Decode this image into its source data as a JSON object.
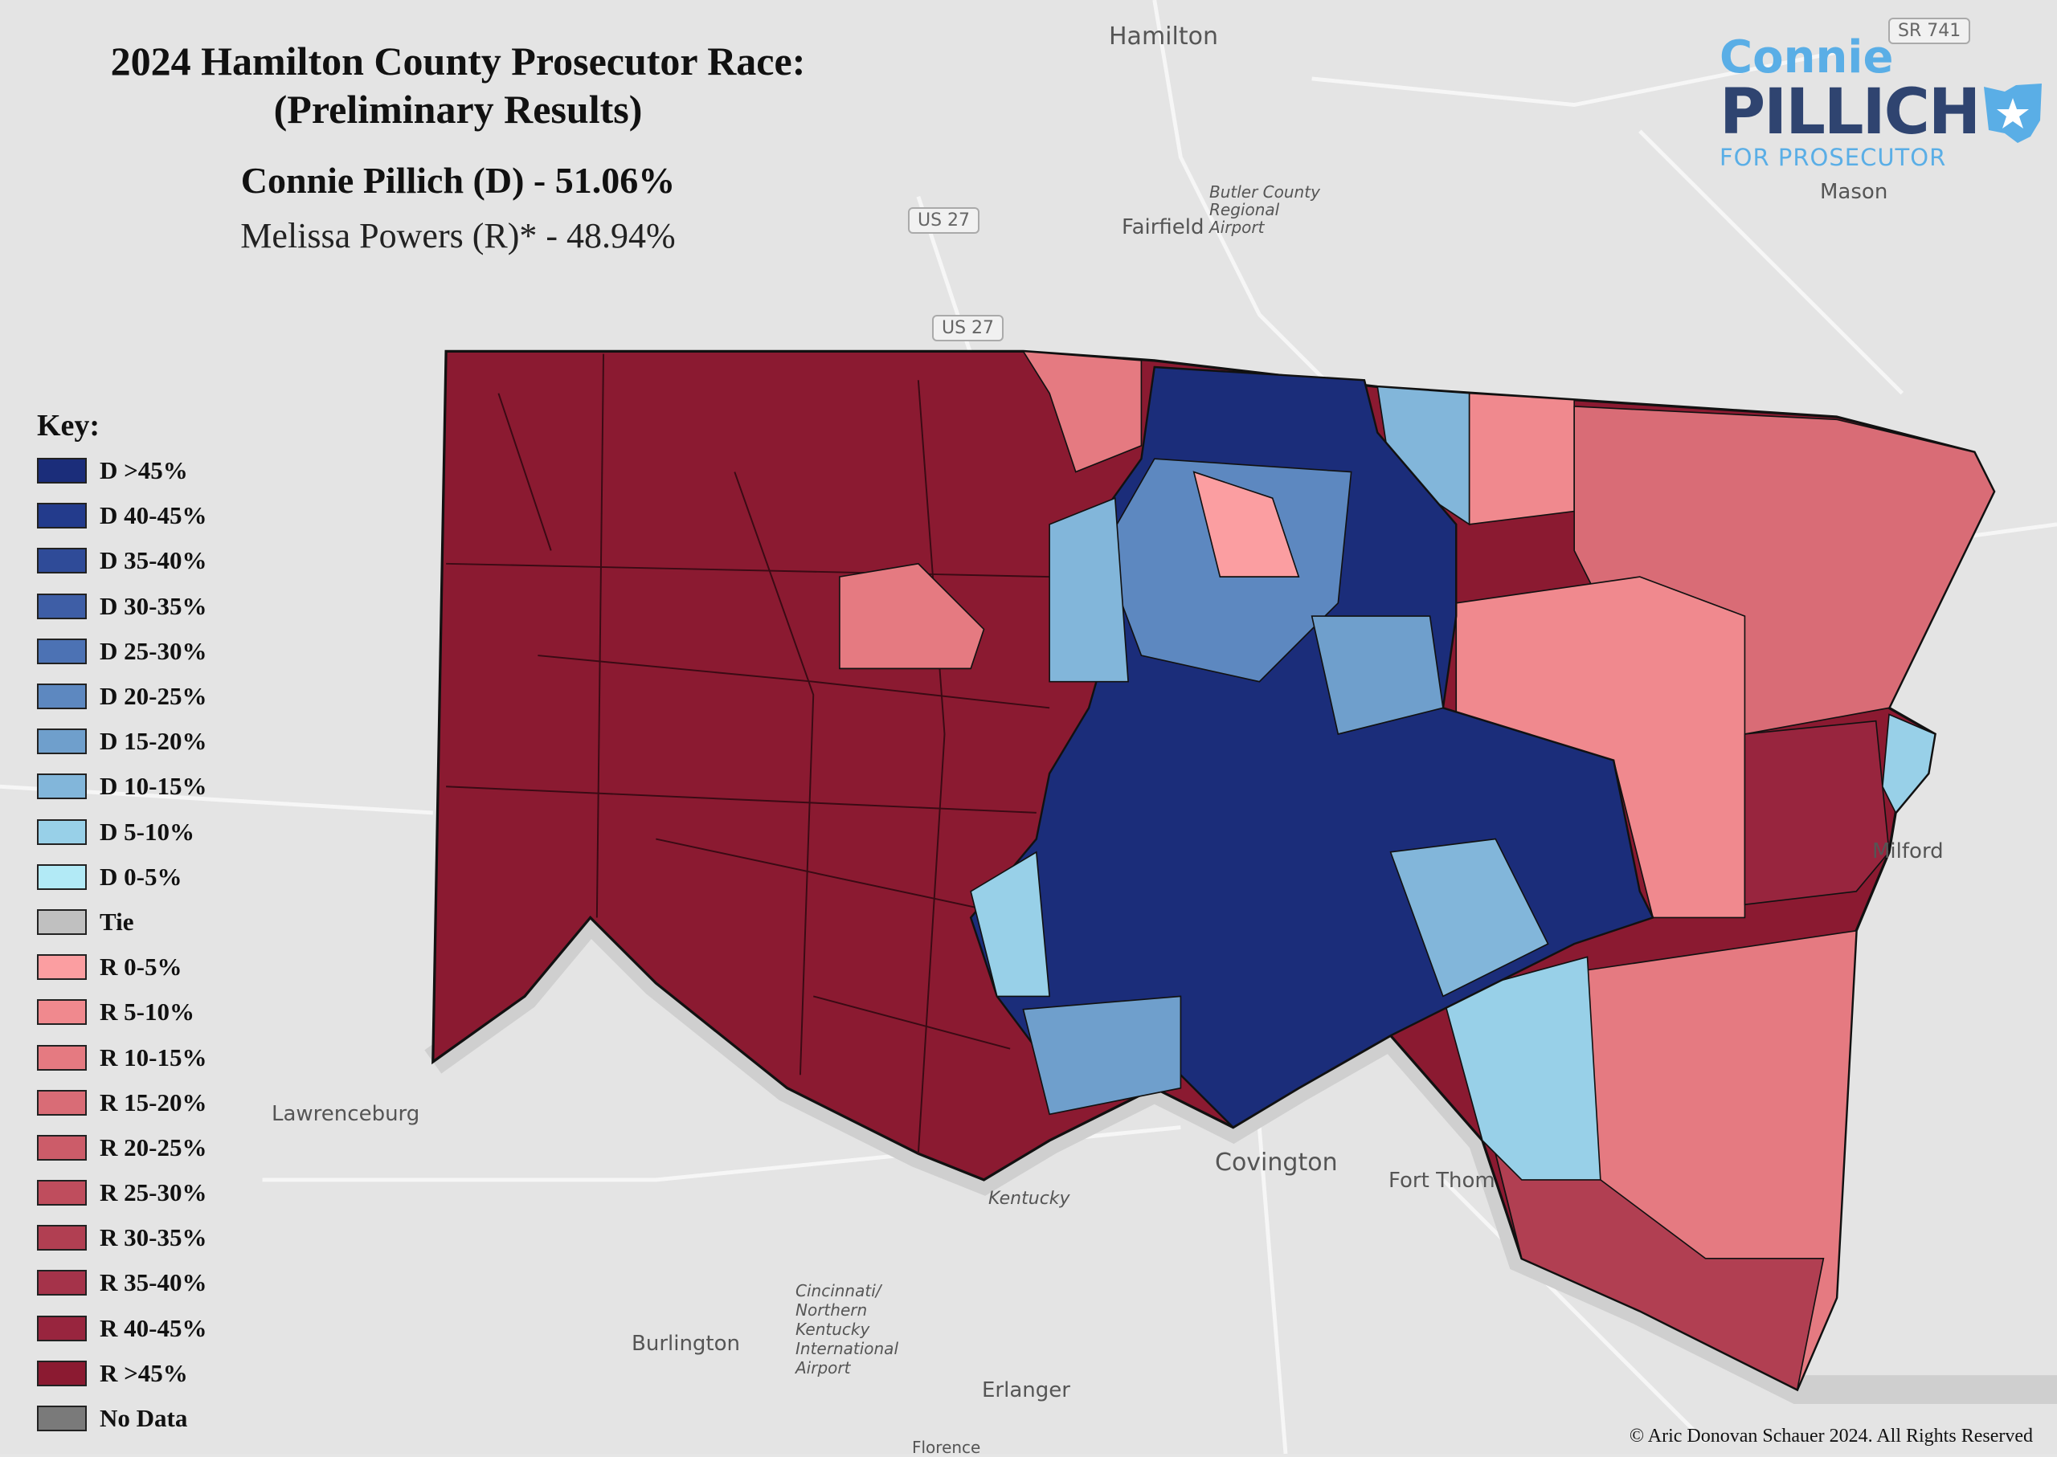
{
  "title": {
    "line1": "2024 Hamilton County Prosecutor Race:",
    "line2": "(Preliminary Results)"
  },
  "results": {
    "dem": "Connie Pillich (D) - 51.06%",
    "rep": "Melissa Powers (R)* - 48.94%"
  },
  "logo": {
    "first": "Connie",
    "last": "PILLICH",
    "tagline": "FOR PROSECUTOR",
    "icon": "ohio-star-icon"
  },
  "legend": {
    "title": "Key:",
    "items": [
      {
        "label": "D >45%",
        "color": "#1b2d7a"
      },
      {
        "label": "D 40-45%",
        "color": "#233b8c"
      },
      {
        "label": "D 35-40%",
        "color": "#2f4b98"
      },
      {
        "label": "D 30-35%",
        "color": "#3e5ea6"
      },
      {
        "label": "D 25-30%",
        "color": "#4c72b4"
      },
      {
        "label": "D 20-25%",
        "color": "#5d88c0"
      },
      {
        "label": "D 15-20%",
        "color": "#6f9fcc"
      },
      {
        "label": "D 10-15%",
        "color": "#82b6da"
      },
      {
        "label": "D 5-10%",
        "color": "#98d0e8"
      },
      {
        "label": "D 0-5%",
        "color": "#b2eaf6"
      },
      {
        "label": "Tie",
        "color": "#c0c0c0"
      },
      {
        "label": "R 0-5%",
        "color": "#fb9ea1"
      },
      {
        "label": "R 5-10%",
        "color": "#f0898e"
      },
      {
        "label": "R 10-15%",
        "color": "#e57a81"
      },
      {
        "label": "R 15-20%",
        "color": "#d96c76"
      },
      {
        "label": "R 20-25%",
        "color": "#cc5c69"
      },
      {
        "label": "R 25-30%",
        "color": "#bf4d5d"
      },
      {
        "label": "R 30-35%",
        "color": "#b13f52"
      },
      {
        "label": "R 35-40%",
        "color": "#a5334a"
      },
      {
        "label": "R 40-45%",
        "color": "#98253e"
      },
      {
        "label": "R >45%",
        "color": "#8b1a31"
      },
      {
        "label": "No Data",
        "color": "#7a7a7a"
      }
    ]
  },
  "basemap_labels": {
    "hamilton": "Hamilton",
    "fairfield": "Fairfield",
    "mason": "Mason",
    "airport_butler": "Butler County Regional Airport",
    "lawrenceburg": "Lawrenceburg",
    "covington": "Covington",
    "fort_thomas": "Fort Thom",
    "burlington": "Burlington",
    "erlanger": "Erlanger",
    "florence": "Florence",
    "milford": "Milford",
    "kentucky": "Kentucky",
    "airport_cvg": "Cincinnati/ Northern Kentucky International Airport",
    "us27a": "US 27",
    "us27b": "US 27",
    "sr741": "SR 741"
  },
  "copyright": "© Aric Donovan Schauer 2024. All Rights Reserved"
}
